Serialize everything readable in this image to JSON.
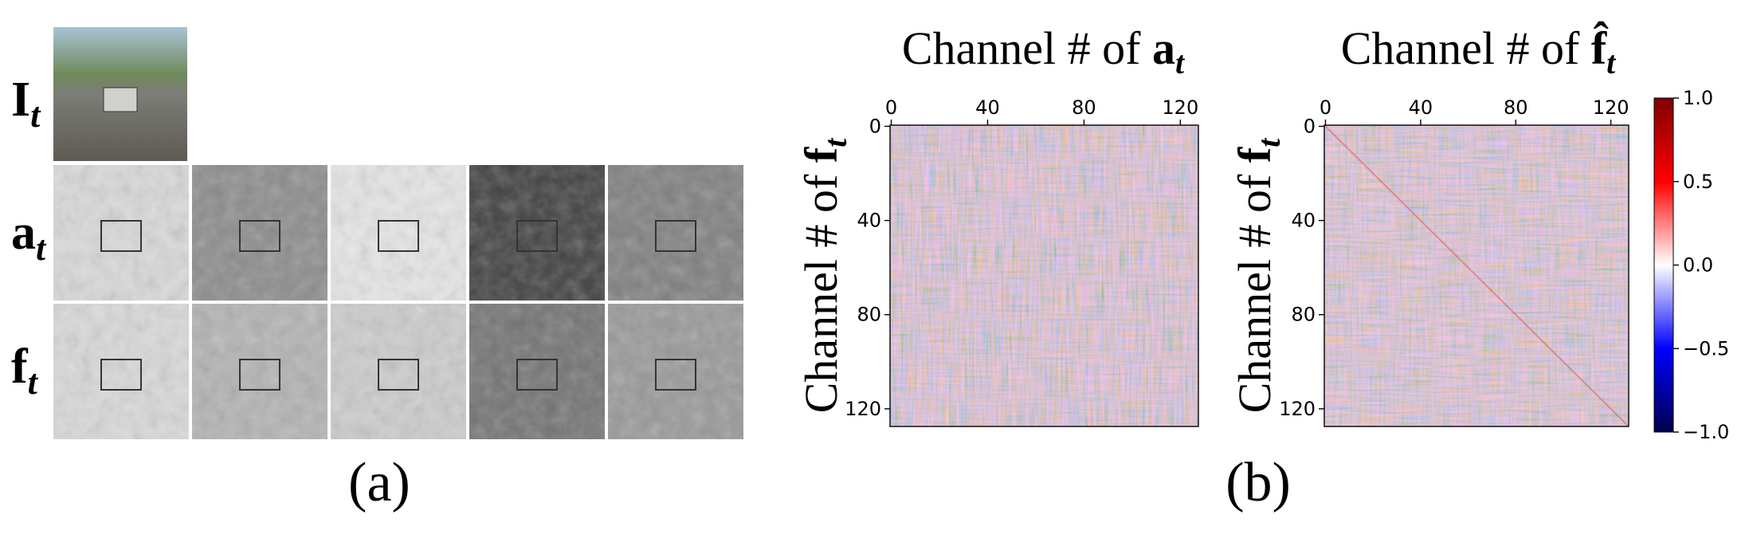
{
  "panel_a": {
    "rows": [
      {
        "symbol": "I",
        "subscript": "t"
      },
      {
        "symbol": "a",
        "subscript": "t"
      },
      {
        "symbol": "f",
        "subscript": "t"
      }
    ],
    "caption": "(a)"
  },
  "panel_b": {
    "heatmaps": [
      {
        "title": {
          "text": "Channel # of ",
          "symbol": "a",
          "subscript": "t"
        },
        "ylabel": {
          "text": "Channel # of ",
          "symbol": "f",
          "subscript": "t"
        }
      },
      {
        "title": {
          "text": "Channel # of ",
          "symbol": "f̂",
          "subscript": "t"
        },
        "ylabel": {
          "text": "Channel # of ",
          "symbol": "f",
          "subscript": "t"
        }
      }
    ],
    "lim": [
      -0.5,
      127.5
    ],
    "ticks": [
      0,
      40,
      80,
      120
    ],
    "colorbar": {
      "lim": [
        -1,
        1
      ],
      "ticks": [
        {
          "value": 1,
          "label": "1.0"
        },
        {
          "value": 0.5,
          "label": "0.5"
        },
        {
          "value": 0,
          "label": "0.0"
        },
        {
          "value": -0.5,
          "label": "−0.5"
        },
        {
          "value": -1,
          "label": "−1.0"
        }
      ]
    },
    "caption": "(b)"
  }
}
